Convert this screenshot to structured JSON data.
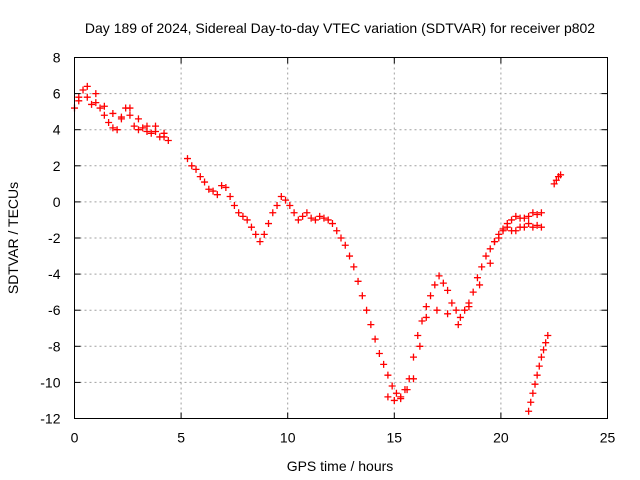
{
  "chart_data": {
    "type": "scatter",
    "title": "Day 189 of 2024, Sidereal Day-to-day VTEC variation (SDTVAR) for receiver p802",
    "xlabel": "GPS time / hours",
    "ylabel": "SDTVAR / TECUs",
    "xlim": [
      0,
      25
    ],
    "ylim": [
      -12,
      8
    ],
    "xticks": [
      0,
      5,
      10,
      15,
      20,
      25
    ],
    "yticks": [
      -12,
      -10,
      -8,
      -6,
      -4,
      -2,
      0,
      2,
      4,
      6,
      8
    ],
    "grid": true,
    "marker": "+",
    "color": "#ff0000",
    "series": [
      {
        "x": [
          0.0,
          0.2,
          0.4,
          0.6,
          0.8,
          1.0,
          1.2,
          1.4,
          1.6,
          1.8,
          2.0,
          2.2,
          2.4,
          2.6,
          2.8,
          3.0,
          3.2,
          3.4,
          3.6,
          3.8,
          4.0,
          4.2,
          4.4,
          5.3,
          5.5,
          5.7,
          5.9,
          6.1,
          6.3,
          6.5,
          6.7,
          6.9,
          7.1,
          7.3,
          7.5,
          7.7,
          7.9,
          8.1,
          8.3,
          8.5,
          8.7,
          8.9,
          9.1,
          9.3,
          9.5,
          9.7,
          9.9,
          10.1,
          10.3,
          10.5,
          10.7,
          10.9,
          11.1,
          11.3,
          11.5,
          11.7,
          11.9,
          12.1,
          12.3,
          12.5,
          12.7,
          12.9,
          13.1,
          13.3,
          13.5,
          13.7,
          13.9,
          14.1,
          14.3,
          14.5,
          14.7,
          14.9,
          15.1,
          15.3,
          15.5,
          15.7,
          15.9,
          16.1,
          16.3,
          16.5,
          16.7,
          16.9,
          17.1,
          17.3,
          17.5,
          17.7,
          17.9,
          18.1,
          18.3,
          18.5,
          18.7,
          18.9,
          19.1,
          19.3,
          19.5,
          19.7,
          19.9,
          20.1,
          20.3,
          20.5,
          20.7,
          20.9,
          21.1,
          21.3,
          21.5,
          21.7,
          21.9,
          22.5,
          22.6,
          22.7,
          22.8
        ],
        "y": [
          5.2,
          5.6,
          6.2,
          5.8,
          5.4,
          5.5,
          5.2,
          4.8,
          4.4,
          4.1,
          4.0,
          4.6,
          5.2,
          4.8,
          4.2,
          4.0,
          4.1,
          3.9,
          3.8,
          4.2,
          3.6,
          3.8,
          3.4,
          2.4,
          2.0,
          1.8,
          1.4,
          1.1,
          0.7,
          0.6,
          0.4,
          0.9,
          0.8,
          0.3,
          -0.2,
          -0.6,
          -0.8,
          -1.0,
          -1.4,
          -1.8,
          -2.2,
          -1.8,
          -1.2,
          -0.6,
          -0.2,
          0.3,
          0.1,
          -0.2,
          -0.6,
          -1.0,
          -0.8,
          -0.6,
          -0.9,
          -1.0,
          -0.8,
          -0.9,
          -1.0,
          -1.2,
          -1.6,
          -2.0,
          -2.4,
          -3.0,
          -3.6,
          -4.4,
          -5.2,
          -6.0,
          -6.8,
          -7.6,
          -8.4,
          -9.0,
          -9.6,
          -10.2,
          -10.6,
          -10.8,
          -10.4,
          -9.8,
          -8.6,
          -7.4,
          -6.6,
          -5.8,
          -5.2,
          -4.6,
          -4.1,
          -4.5,
          -4.9,
          -5.6,
          -6.0,
          -6.4,
          -6.0,
          -5.6,
          -5.0,
          -4.2,
          -3.6,
          -3.0,
          -2.6,
          -2.2,
          -1.8,
          -1.5,
          -1.2,
          -1.0,
          -0.8,
          -0.9,
          -0.9,
          -0.8,
          -0.6,
          -0.7,
          -0.6,
          1.0,
          1.2,
          1.4,
          1.5
        ]
      },
      {
        "x": [
          19.7,
          19.9,
          20.1,
          20.3,
          20.5,
          20.7,
          20.9,
          21.1,
          21.3,
          21.5,
          21.7,
          21.9
        ],
        "y": [
          -2.2,
          -2.0,
          -1.6,
          -1.4,
          -1.6,
          -1.6,
          -1.4,
          -1.4,
          -1.2,
          -1.4,
          -1.3,
          -1.4
        ]
      },
      {
        "x": [
          0.2,
          0.6,
          1.0,
          1.4,
          1.8,
          2.2,
          2.6,
          3.0,
          3.4,
          3.8,
          4.2,
          14.7,
          15.0,
          15.3,
          15.6,
          15.9,
          16.2,
          16.5,
          17.0,
          17.5,
          18.0,
          18.5,
          19.0,
          19.5
        ],
        "y": [
          5.8,
          6.4,
          6.0,
          5.3,
          4.9,
          4.7,
          5.2,
          4.6,
          4.2,
          3.9,
          3.6,
          -10.8,
          -11.0,
          -10.9,
          -10.4,
          -9.8,
          -8.0,
          -6.4,
          -6.0,
          -6.2,
          -6.8,
          -5.8,
          -4.6,
          -3.4
        ]
      },
      {
        "x": [
          21.3,
          21.4,
          21.5,
          21.6,
          21.7,
          21.8,
          21.9,
          22.0,
          22.1,
          22.2
        ],
        "y": [
          -11.6,
          -11.1,
          -10.6,
          -10.1,
          -9.6,
          -9.1,
          -8.6,
          -8.2,
          -7.8,
          -7.4
        ]
      }
    ]
  }
}
